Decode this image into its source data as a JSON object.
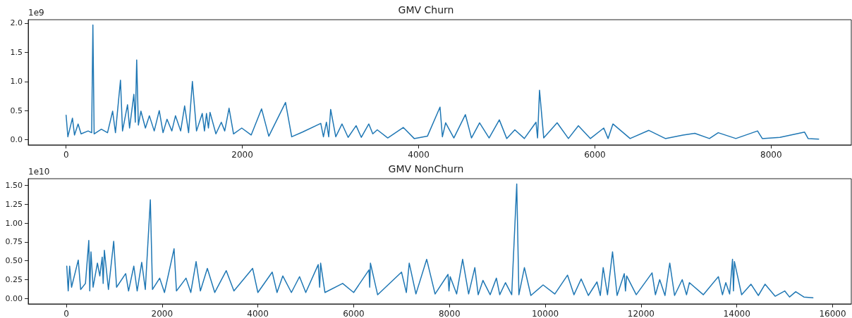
{
  "chart_data": [
    {
      "type": "line",
      "title": "GMV Churn",
      "annotations": [
        "1e9"
      ],
      "xlim": [
        -430,
        8910
      ],
      "ylim": [
        -0.09,
        2.06
      ],
      "xticks": [
        0,
        2000,
        4000,
        6000,
        8000
      ],
      "yticks": [
        {
          "value": 0,
          "label": "0.0"
        },
        0.5,
        {
          "value": 1,
          "label": "1.0"
        },
        1.5,
        {
          "value": 2,
          "label": "2.0"
        }
      ],
      "grid": false,
      "marker": "none",
      "line_style": "solid",
      "series": [
        {
          "color": "#1f77b4",
          "x": [
            0,
            20,
            72,
            95,
            136,
            170,
            250,
            290,
            304,
            318,
            400,
            470,
            528,
            560,
            617,
            640,
            697,
            720,
            769,
            785,
            801,
            820,
            849,
            900,
            945,
            1000,
            1057,
            1100,
            1145,
            1200,
            1241,
            1300,
            1345,
            1390,
            1433,
            1480,
            1545,
            1570,
            1593,
            1615,
            1633,
            1700,
            1761,
            1800,
            1849,
            1900,
            1993,
            2100,
            2218,
            2300,
            2490,
            2560,
            2682,
            2890,
            2920,
            2954,
            2980,
            3002,
            3060,
            3131,
            3200,
            3291,
            3350,
            3435,
            3480,
            3531,
            3650,
            3827,
            3950,
            4100,
            4243,
            4270,
            4307,
            4400,
            4531,
            4600,
            4692,
            4800,
            4916,
            5000,
            5092,
            5200,
            5332,
            5350,
            5372,
            5420,
            5572,
            5700,
            5813,
            5950,
            6101,
            6150,
            6205,
            6400,
            6613,
            6800,
            7000,
            7134,
            7300,
            7400,
            7600,
            7846,
            7900,
            8100,
            8380,
            8420,
            8540
          ],
          "values": [
            0.42,
            0.05,
            0.37,
            0.08,
            0.27,
            0.1,
            0.15,
            0.12,
            1.97,
            0.1,
            0.18,
            0.12,
            0.49,
            0.12,
            1.02,
            0.15,
            0.6,
            0.2,
            0.78,
            0.3,
            1.37,
            0.25,
            0.49,
            0.2,
            0.41,
            0.15,
            0.5,
            0.12,
            0.35,
            0.15,
            0.41,
            0.15,
            0.58,
            0.12,
            1.0,
            0.15,
            0.45,
            0.15,
            0.45,
            0.2,
            0.47,
            0.1,
            0.3,
            0.15,
            0.54,
            0.1,
            0.2,
            0.08,
            0.53,
            0.06,
            0.64,
            0.05,
            0.13,
            0.28,
            0.05,
            0.3,
            0.05,
            0.52,
            0.05,
            0.27,
            0.04,
            0.24,
            0.04,
            0.27,
            0.1,
            0.17,
            0.03,
            0.21,
            0.02,
            0.06,
            0.56,
            0.05,
            0.29,
            0.03,
            0.43,
            0.03,
            0.29,
            0.03,
            0.34,
            0.02,
            0.17,
            0.02,
            0.3,
            0.03,
            0.85,
            0.03,
            0.29,
            0.02,
            0.24,
            0.02,
            0.2,
            0.02,
            0.27,
            0.02,
            0.16,
            0.02,
            0.08,
            0.11,
            0.02,
            0.12,
            0.02,
            0.15,
            0.02,
            0.04,
            0.13,
            0.02,
            0.01
          ]
        }
      ]
    },
    {
      "type": "line",
      "title": "GMV NonChurn",
      "annotations": [
        "1e10"
      ],
      "xlim": [
        -795,
        16390
      ],
      "ylim": [
        -0.072,
        1.59
      ],
      "xticks": [
        0,
        2000,
        4000,
        6000,
        8000,
        10000,
        12000,
        14000,
        16000
      ],
      "yticks": [
        {
          "value": 0,
          "label": "0.00"
        },
        0.25,
        {
          "value": 0.5,
          "label": "0.50"
        },
        0.75,
        {
          "value": 1,
          "label": "1.00"
        },
        1.25,
        {
          "value": 1.5,
          "label": "1.50"
        }
      ],
      "grid": false,
      "marker": "none",
      "line_style": "solid",
      "series": [
        {
          "color": "#1f77b4",
          "x": [
            10,
            40,
            70,
            110,
            250,
            300,
            400,
            470,
            490,
            515,
            560,
            650,
            700,
            750,
            770,
            795,
            880,
            990,
            1050,
            1240,
            1300,
            1410,
            1480,
            1575,
            1650,
            1755,
            1800,
            1950,
            2050,
            2250,
            2300,
            2500,
            2600,
            2710,
            2800,
            2945,
            3100,
            3340,
            3500,
            3890,
            4000,
            4300,
            4400,
            4520,
            4700,
            4870,
            5000,
            5260,
            5290,
            5310,
            5400,
            5770,
            6000,
            6320,
            6335,
            6350,
            6500,
            7000,
            7100,
            7160,
            7300,
            7525,
            7700,
            7970,
            7990,
            8015,
            8150,
            8275,
            8400,
            8530,
            8600,
            8700,
            8850,
            8980,
            9050,
            9170,
            9300,
            9405,
            9450,
            9565,
            9700,
            9955,
            10200,
            10465,
            10600,
            10750,
            10900,
            11080,
            11150,
            11210,
            11300,
            11405,
            11500,
            11650,
            11675,
            11700,
            11900,
            12230,
            12300,
            12390,
            12500,
            12600,
            12700,
            12860,
            12950,
            13010,
            13300,
            13615,
            13700,
            13770,
            13850,
            13910,
            13930,
            13950,
            14100,
            14295,
            14450,
            14590,
            14800,
            15000,
            15100,
            15230,
            15400,
            15590
          ],
          "values": [
            0.43,
            0.1,
            0.43,
            0.15,
            0.51,
            0.12,
            0.2,
            0.77,
            0.1,
            0.62,
            0.15,
            0.47,
            0.3,
            0.55,
            0.2,
            0.64,
            0.12,
            0.76,
            0.15,
            0.33,
            0.1,
            0.43,
            0.1,
            0.48,
            0.12,
            1.31,
            0.12,
            0.27,
            0.08,
            0.66,
            0.1,
            0.27,
            0.08,
            0.49,
            0.1,
            0.4,
            0.08,
            0.37,
            0.1,
            0.4,
            0.08,
            0.35,
            0.08,
            0.3,
            0.08,
            0.29,
            0.08,
            0.45,
            0.15,
            0.47,
            0.08,
            0.2,
            0.08,
            0.38,
            0.15,
            0.47,
            0.05,
            0.35,
            0.08,
            0.47,
            0.06,
            0.52,
            0.06,
            0.32,
            0.1,
            0.29,
            0.06,
            0.52,
            0.06,
            0.41,
            0.05,
            0.24,
            0.05,
            0.27,
            0.05,
            0.21,
            0.05,
            1.52,
            0.05,
            0.41,
            0.04,
            0.18,
            0.06,
            0.31,
            0.05,
            0.26,
            0.04,
            0.22,
            0.04,
            0.41,
            0.05,
            0.62,
            0.04,
            0.33,
            0.1,
            0.3,
            0.05,
            0.34,
            0.05,
            0.25,
            0.04,
            0.47,
            0.04,
            0.25,
            0.05,
            0.21,
            0.05,
            0.29,
            0.05,
            0.21,
            0.06,
            0.52,
            0.1,
            0.49,
            0.05,
            0.19,
            0.04,
            0.19,
            0.03,
            0.1,
            0.02,
            0.09,
            0.02,
            0.01
          ]
        }
      ]
    }
  ]
}
